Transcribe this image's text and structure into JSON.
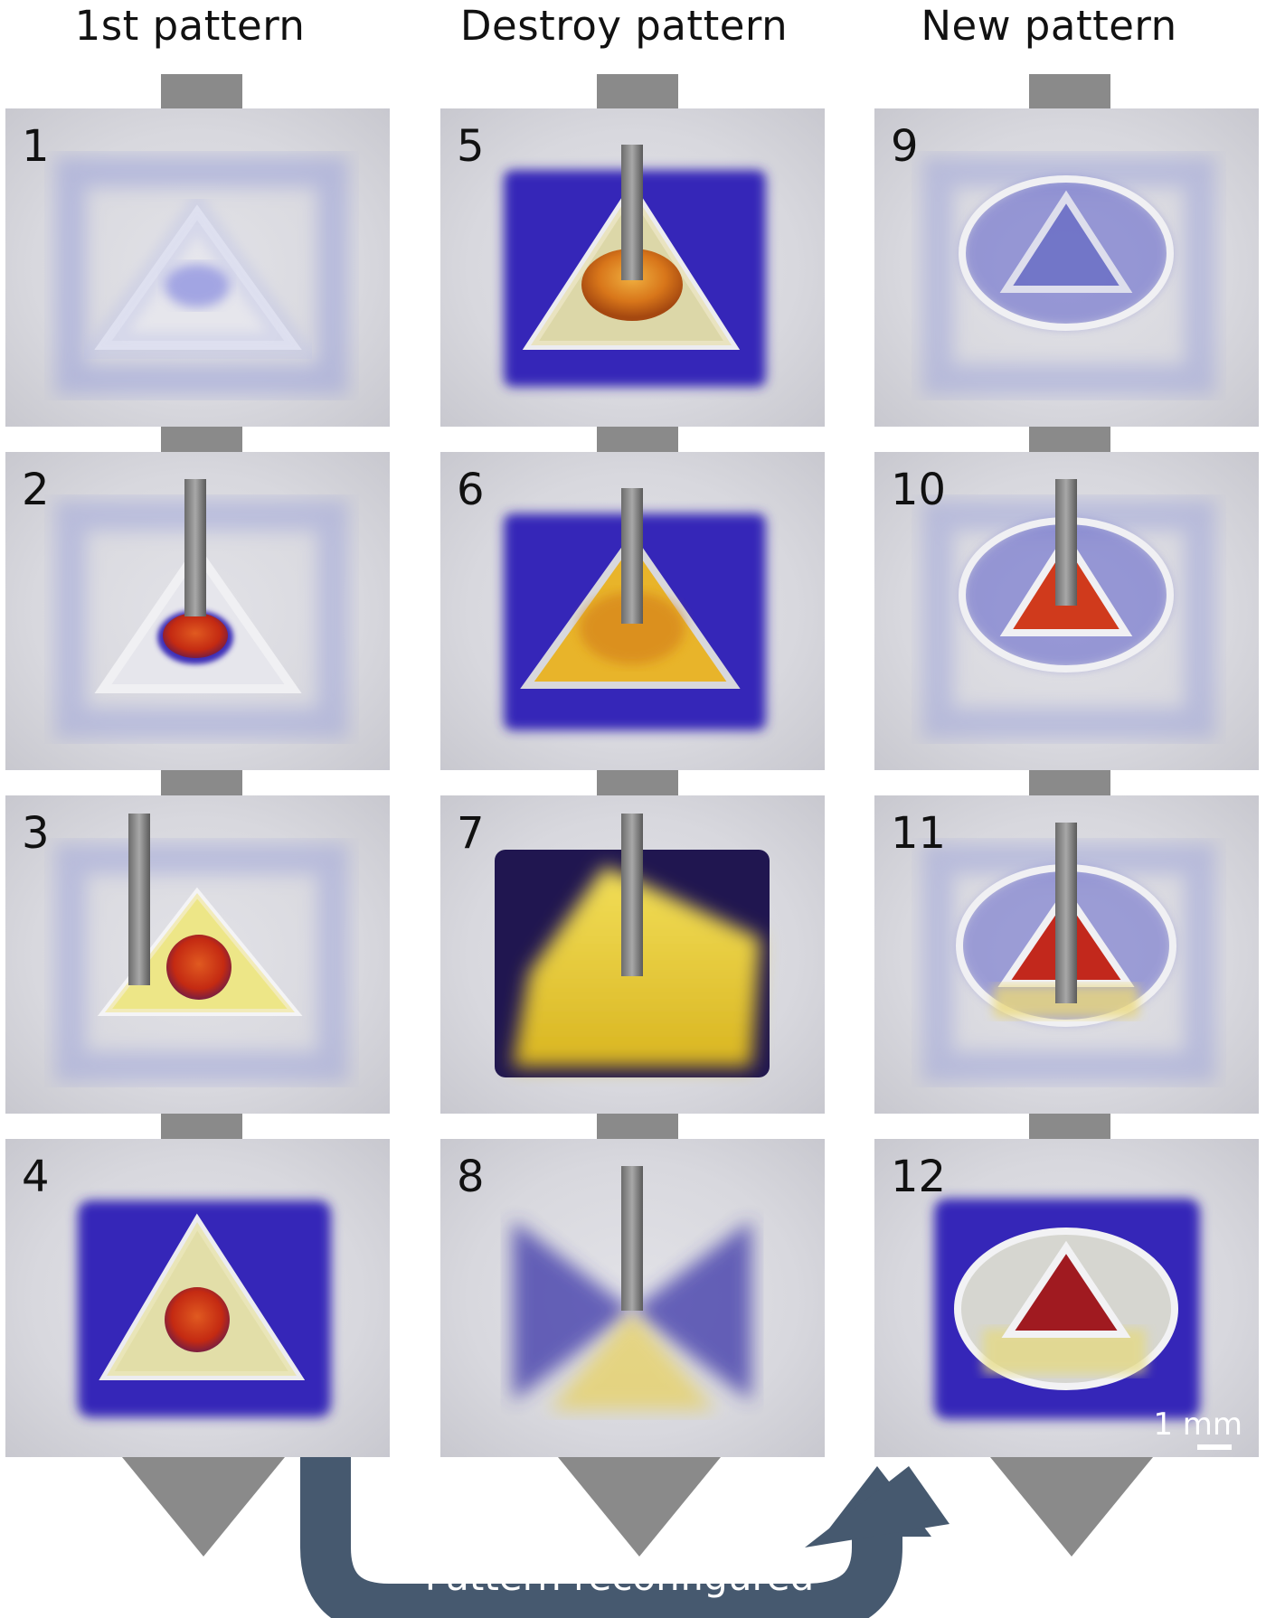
{
  "headers": {
    "col1": "1st pattern",
    "col2": "Destroy pattern",
    "col3": "New pattern"
  },
  "panels": [
    {
      "label": "1"
    },
    {
      "label": "2"
    },
    {
      "label": "3"
    },
    {
      "label": "4"
    },
    {
      "label": "5"
    },
    {
      "label": "6"
    },
    {
      "label": "7"
    },
    {
      "label": "8"
    },
    {
      "label": "9"
    },
    {
      "label": "10"
    },
    {
      "label": "11"
    },
    {
      "label": "12"
    }
  ],
  "loop_arrow": {
    "label": "Pattern reconfigured"
  },
  "scale_bar": {
    "label": "1 mm"
  },
  "colors": {
    "arrow_gray": "#8a8a8a",
    "loop_arrow": "#46596f",
    "blue_dye": "#2c1fb0",
    "red_drop": "#c62a12",
    "yellow_liquid": "#e8c82a"
  }
}
